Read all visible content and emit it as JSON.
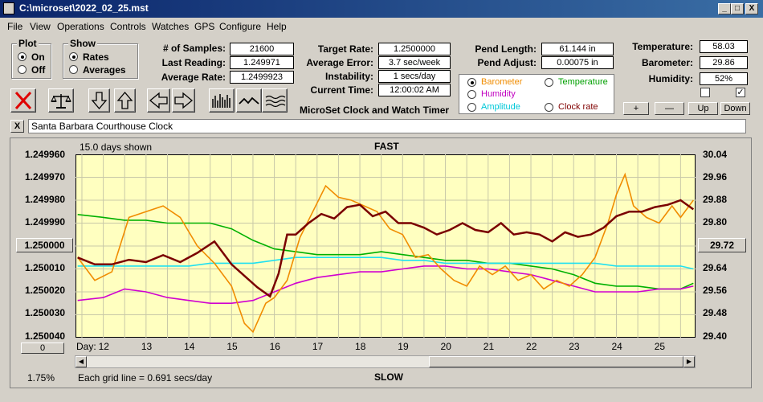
{
  "window": {
    "title": "C:\\microset\\2022_02_25.mst",
    "min_label": "_",
    "max_label": "□",
    "close_label": "X"
  },
  "menu": [
    "File",
    "View",
    "Operations",
    "Controls",
    "Watches",
    "GPS",
    "Configure",
    "Help"
  ],
  "plot_group": {
    "title": "Plot",
    "options": [
      "On",
      "Off"
    ],
    "selected": "On"
  },
  "show_group": {
    "title": "Show",
    "options": [
      "Rates",
      "Averages"
    ],
    "selected": "Rates"
  },
  "stats": {
    "samples_label": "# of Samples:",
    "samples": "21600",
    "last_label": "Last Reading:",
    "last": "1.249971",
    "avg_label": "Average Rate:",
    "avg": "1.2499923",
    "target_label": "Target Rate:",
    "target": "1.2500000",
    "avgerr_label": "Average Error:",
    "avgerr": "3.7 sec/week",
    "instab_label": "Instability:",
    "instab": "1 secs/day",
    "time_label": "Current Time:",
    "time": "12:00:02 AM",
    "pend_len_label": "Pend Length:",
    "pend_len": "61.144 in",
    "pend_adj_label": "Pend Adjust:",
    "pend_adj": "0.00075 in",
    "temp_label": "Temperature:",
    "temp": "58.03",
    "baro_label": "Barometer:",
    "baro": "29.86",
    "hum_label": "Humidity:",
    "hum": "52%"
  },
  "app_caption": "MicroSet Clock and Watch Timer",
  "legend_options": [
    {
      "name": "Barometer",
      "color": "#f08c00",
      "selected": true
    },
    {
      "name": "Temperature",
      "color": "#00a000",
      "selected": false
    },
    {
      "name": "Humidity",
      "color": "#c000c0",
      "selected": false
    },
    {
      "name": "Clock rate",
      "color": "#800000",
      "selected": false
    },
    {
      "name": "Amplitude",
      "color": "#00c8d8",
      "selected": false
    }
  ],
  "small_buttons": {
    "plus": "+",
    "minus": "—",
    "up": "Up",
    "down": "Down"
  },
  "checkbox_states": {
    "first": "",
    "second": "✓"
  },
  "clock_close": "X",
  "clock_name": "Santa Barbara Courthouse Clock",
  "plot": {
    "days_shown": "15.0 days shown",
    "top_label": "FAST",
    "bottom_label": "SLOW",
    "left_button": "1.250000",
    "right_button": "29.72",
    "zero_button": "0",
    "percent": "1.75%",
    "grid_note": "Each grid line = 0.691 secs/day",
    "day_label": "Day:"
  },
  "chart_data": {
    "type": "line",
    "x_label": "Day:",
    "x_ticks": [
      "12",
      "13",
      "14",
      "15",
      "16",
      "17",
      "18",
      "19",
      "20",
      "21",
      "22",
      "23",
      "24",
      "25"
    ],
    "xlim": [
      11.35,
      25.85
    ],
    "y_left_ticks": [
      "1.249960",
      "1.249970",
      "1.249980",
      "1.249990",
      "1.250000",
      "1.250010",
      "1.250020",
      "1.250030",
      "1.250040"
    ],
    "y_left_lim": [
      1.25004,
      1.24996
    ],
    "y_right_ticks": [
      "30.04",
      "29.96",
      "29.88",
      "29.80",
      "29.72",
      "29.64",
      "29.56",
      "29.48",
      "29.40"
    ],
    "y_right_lim": [
      29.4,
      30.04
    ],
    "grid": true,
    "series": [
      {
        "name": "Temperature",
        "color": "#00b000",
        "axis": "pressure_scale",
        "x": [
          11.4,
          12.0,
          12.5,
          13.0,
          13.5,
          14.0,
          14.5,
          15.0,
          15.5,
          16.0,
          16.5,
          17.0,
          17.5,
          18.0,
          18.5,
          19.0,
          19.5,
          20.0,
          20.5,
          21.0,
          21.5,
          22.0,
          22.5,
          23.0,
          23.5,
          24.0,
          24.5,
          25.0,
          25.5,
          25.8
        ],
        "y": [
          29.83,
          29.82,
          29.81,
          29.81,
          29.8,
          29.8,
          29.8,
          29.78,
          29.74,
          29.71,
          29.7,
          29.69,
          29.69,
          29.69,
          29.7,
          29.69,
          29.68,
          29.67,
          29.67,
          29.66,
          29.66,
          29.65,
          29.64,
          29.62,
          29.59,
          29.58,
          29.58,
          29.57,
          29.57,
          29.59
        ]
      },
      {
        "name": "Amplitude",
        "color": "#20e0f0",
        "axis": "pressure_scale",
        "x": [
          11.4,
          12.0,
          12.5,
          13.0,
          13.5,
          14.0,
          14.5,
          15.0,
          15.5,
          16.0,
          16.5,
          17.0,
          17.5,
          18.0,
          18.5,
          19.0,
          19.5,
          20.0,
          20.5,
          21.0,
          21.5,
          22.0,
          22.5,
          23.0,
          23.5,
          24.0,
          24.5,
          25.0,
          25.5,
          25.8
        ],
        "y": [
          29.65,
          29.65,
          29.65,
          29.65,
          29.65,
          29.65,
          29.66,
          29.66,
          29.66,
          29.67,
          29.68,
          29.68,
          29.68,
          29.68,
          29.68,
          29.67,
          29.67,
          29.66,
          29.66,
          29.66,
          29.66,
          29.66,
          29.66,
          29.66,
          29.66,
          29.65,
          29.65,
          29.65,
          29.65,
          29.64
        ]
      },
      {
        "name": "Humidity",
        "color": "#d000d0",
        "axis": "pressure_scale",
        "x": [
          11.4,
          12.0,
          12.5,
          13.0,
          13.5,
          14.0,
          14.5,
          15.0,
          15.5,
          16.0,
          16.5,
          17.0,
          17.5,
          18.0,
          18.5,
          19.0,
          19.5,
          20.0,
          20.5,
          21.0,
          21.5,
          22.0,
          22.5,
          23.0,
          23.5,
          24.0,
          24.5,
          25.0,
          25.5,
          25.8
        ],
        "y": [
          29.53,
          29.54,
          29.57,
          29.56,
          29.54,
          29.53,
          29.52,
          29.52,
          29.53,
          29.56,
          29.59,
          29.61,
          29.62,
          29.63,
          29.63,
          29.64,
          29.65,
          29.65,
          29.64,
          29.64,
          29.63,
          29.62,
          29.6,
          29.58,
          29.56,
          29.56,
          29.56,
          29.57,
          29.57,
          29.58
        ]
      },
      {
        "name": "Barometer",
        "color": "#f08c00",
        "axis": "pressure_scale",
        "x": [
          11.4,
          11.8,
          12.2,
          12.6,
          13.0,
          13.4,
          13.8,
          14.2,
          14.6,
          15.0,
          15.3,
          15.5,
          15.8,
          16.0,
          16.3,
          16.6,
          16.9,
          17.2,
          17.5,
          17.8,
          18.1,
          18.4,
          18.7,
          19.0,
          19.3,
          19.6,
          19.9,
          20.2,
          20.5,
          20.8,
          21.1,
          21.4,
          21.7,
          22.0,
          22.3,
          22.6,
          22.9,
          23.2,
          23.5,
          23.8,
          24.0,
          24.2,
          24.4,
          24.7,
          25.0,
          25.3,
          25.5,
          25.8
        ],
        "y": [
          29.68,
          29.6,
          29.63,
          29.82,
          29.84,
          29.86,
          29.82,
          29.72,
          29.66,
          29.58,
          29.45,
          29.42,
          29.52,
          29.54,
          29.6,
          29.75,
          29.84,
          29.93,
          29.89,
          29.88,
          29.86,
          29.84,
          29.78,
          29.76,
          29.68,
          29.69,
          29.64,
          29.6,
          29.58,
          29.65,
          29.62,
          29.65,
          29.6,
          29.62,
          29.57,
          29.6,
          29.58,
          29.62,
          29.68,
          29.8,
          29.9,
          29.97,
          29.86,
          29.82,
          29.8,
          29.86,
          29.82,
          29.88
        ]
      },
      {
        "name": "Clock rate",
        "color": "#7a0000",
        "axis": "rate_scale",
        "x": [
          11.4,
          11.8,
          12.2,
          12.6,
          13.0,
          13.4,
          13.8,
          14.2,
          14.6,
          15.0,
          15.3,
          15.6,
          15.9,
          16.1,
          16.3,
          16.5,
          16.8,
          17.1,
          17.4,
          17.7,
          18.0,
          18.3,
          18.6,
          18.9,
          19.2,
          19.5,
          19.8,
          20.1,
          20.4,
          20.7,
          21.0,
          21.3,
          21.6,
          21.9,
          22.2,
          22.5,
          22.8,
          23.1,
          23.4,
          23.7,
          24.0,
          24.3,
          24.6,
          24.9,
          25.2,
          25.5,
          25.8
        ],
        "y": [
          1.250005,
          1.250008,
          1.250008,
          1.250006,
          1.250007,
          1.250004,
          1.250007,
          1.250003,
          1.249998,
          1.250008,
          1.250013,
          1.250018,
          1.250022,
          1.250012,
          1.249995,
          1.249995,
          1.24999,
          1.249986,
          1.249988,
          1.249983,
          1.249982,
          1.249987,
          1.249985,
          1.24999,
          1.24999,
          1.249992,
          1.249995,
          1.249993,
          1.24999,
          1.249993,
          1.249994,
          1.24999,
          1.249995,
          1.249994,
          1.249995,
          1.249998,
          1.249994,
          1.249996,
          1.249995,
          1.249992,
          1.249987,
          1.249985,
          1.249985,
          1.249983,
          1.249982,
          1.24998,
          1.249984
        ]
      }
    ]
  }
}
